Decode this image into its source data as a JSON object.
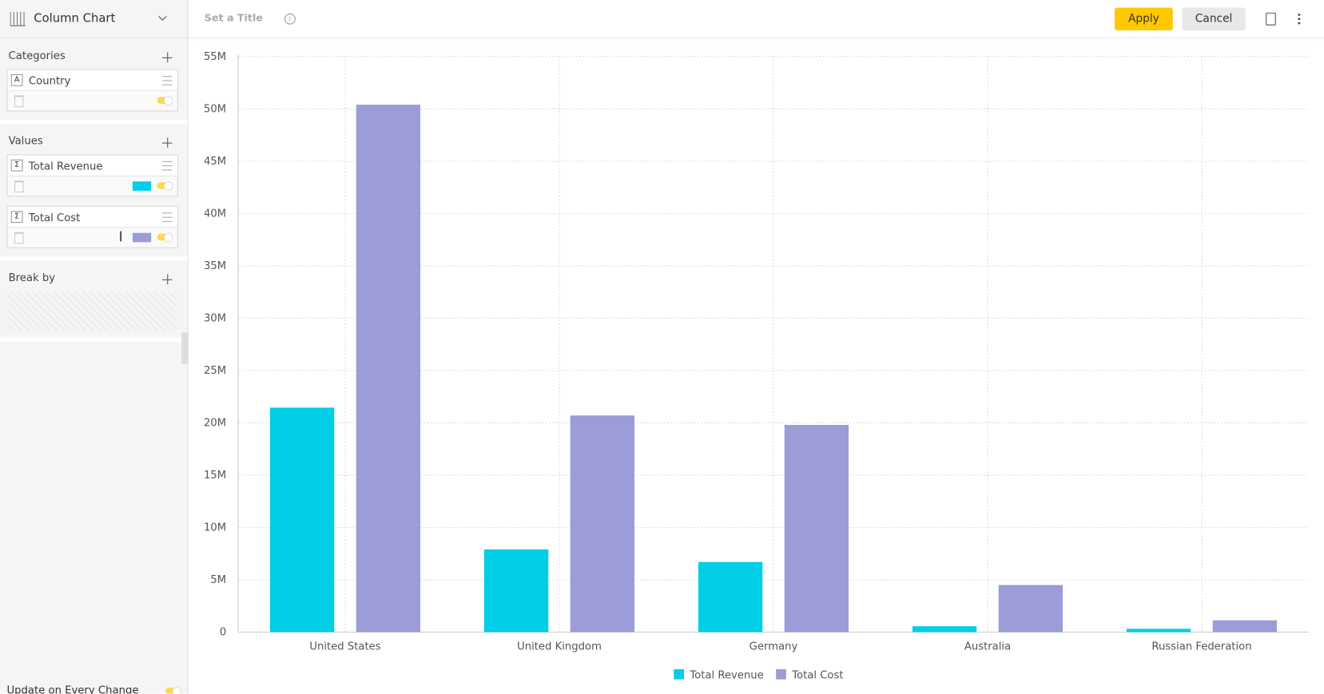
{
  "toolbar": {
    "chart_type": "Column Chart",
    "title_placeholder": "Set a Title",
    "apply": "Apply",
    "cancel": "Cancel"
  },
  "sidebar": {
    "categories_label": "Categories",
    "category_field": "Country",
    "values_label": "Values",
    "value_fields": [
      "Total Revenue",
      "Total Cost"
    ],
    "break_by_label": "Break by",
    "update_label": "Update on Every Change"
  },
  "chart_data": {
    "type": "bar",
    "categories": [
      "United States",
      "United Kingdom",
      "Germany",
      "Australia",
      "Russian Federation"
    ],
    "series": [
      {
        "name": "Total Revenue",
        "color": "#00cde6",
        "values": [
          21450000,
          7900000,
          6700000,
          560000,
          320000
        ]
      },
      {
        "name": "Total Cost",
        "color": "#9c9cd8",
        "values": [
          50400000,
          20700000,
          19800000,
          4500000,
          1130000
        ]
      }
    ],
    "ylim": [
      0,
      55000000
    ],
    "yticks": [
      0,
      {
        "value": 5000000,
        "label": "5M"
      },
      {
        "value": 10000000,
        "label": "10M"
      },
      {
        "value": 15000000,
        "label": "15M"
      },
      {
        "value": 20000000,
        "label": "20M"
      },
      {
        "value": 25000000,
        "label": "25M"
      },
      {
        "value": 30000000,
        "label": "30M"
      },
      {
        "value": 35000000,
        "label": "35M"
      },
      {
        "value": 40000000,
        "label": "40M"
      },
      {
        "value": 45000000,
        "label": "45M"
      },
      {
        "value": 50000000,
        "label": "50M"
      },
      {
        "value": 55000000,
        "label": "55M"
      }
    ],
    "grid": true,
    "legend": "bottom"
  }
}
